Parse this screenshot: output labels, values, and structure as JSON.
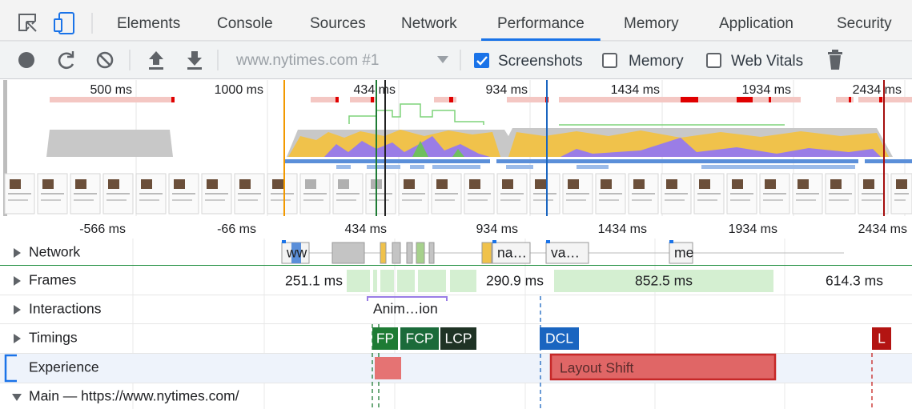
{
  "tabs": [
    "Elements",
    "Console",
    "Sources",
    "Network",
    "Performance",
    "Memory",
    "Application",
    "Security"
  ],
  "active_tab": 4,
  "toolbar": {
    "recording": "www.nytimes.com #1",
    "checkboxes": [
      {
        "label": "Screenshots",
        "checked": true
      },
      {
        "label": "Memory",
        "checked": false
      },
      {
        "label": "Web Vitals",
        "checked": false
      }
    ]
  },
  "overview_ruler": [
    "500 ms",
    "1000 ms",
    "434 ms",
    "934 ms",
    "1434 ms",
    "1934 ms",
    "2434 ms"
  ],
  "timeline_ruler": [
    "-566 ms",
    "-66 ms",
    "434 ms",
    "934 ms",
    "1434 ms",
    "1934 ms",
    "2434 ms"
  ],
  "tracks": {
    "network": {
      "label": "Network",
      "requests": [
        "ww",
        "na…",
        "va…",
        "me"
      ]
    },
    "frames": {
      "label": "Frames",
      "durations": [
        "251.1 ms",
        "290.9 ms",
        "852.5 ms",
        "614.3 ms"
      ]
    },
    "interactions": {
      "label": "Interactions",
      "items": [
        "Anim…ion"
      ]
    },
    "timings": {
      "label": "Timings",
      "markers": [
        "FP",
        "FCP",
        "LCP",
        "DCL",
        "L"
      ]
    },
    "experience": {
      "label": "Experience",
      "items": [
        "Layout Shift"
      ]
    },
    "main": {
      "label": "Main — https://www.nytimes.com/"
    }
  }
}
